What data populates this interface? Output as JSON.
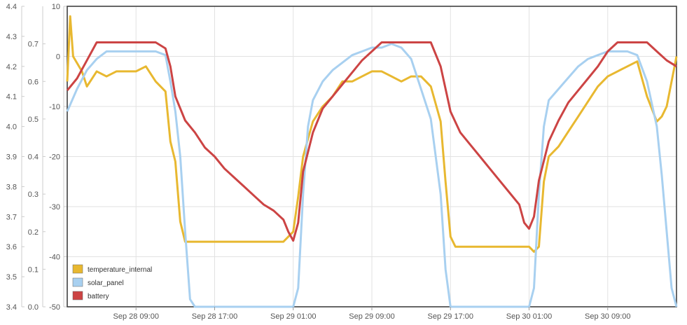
{
  "chart_data": {
    "type": "line",
    "grid": true,
    "legend_position": "bottom-left",
    "x_axis": {
      "range": [
        "Sep 28 02:00",
        "Oct 1 00:00"
      ],
      "ticks": [
        {
          "label": "Sep 28 09:00",
          "hours": 7
        },
        {
          "label": "Sep 28 17:00",
          "hours": 15
        },
        {
          "label": "Sep 29 01:00",
          "hours": 23
        },
        {
          "label": "Sep 29 09:00",
          "hours": 31
        },
        {
          "label": "Sep 29 17:00",
          "hours": 39
        },
        {
          "label": "Sep 30 01:00",
          "hours": 47
        },
        {
          "label": "Sep 30 09:00",
          "hours": 55
        }
      ]
    },
    "y_axes": [
      {
        "id": "battery",
        "range": [
          3.4,
          4.4
        ],
        "ticks": [
          "3.4",
          "3.5",
          "3.6",
          "3.7",
          "3.8",
          "3.9",
          "4.0",
          "4.1",
          "4.2",
          "4.3",
          "4.4"
        ]
      },
      {
        "id": "solar_panel",
        "range": [
          0.0,
          0.8
        ],
        "ticks": [
          "0.0",
          "0.1",
          "0.2",
          "0.3",
          "0.4",
          "0.5",
          "0.6",
          "0.7"
        ]
      },
      {
        "id": "temperature_internal",
        "range": [
          -50,
          10
        ],
        "ticks": [
          "-50",
          "-40",
          "-30",
          "-20",
          "-10",
          "0",
          "10"
        ]
      }
    ],
    "series": [
      {
        "name": "temperature_internal",
        "axis": "temperature_internal",
        "color": "#e8b830",
        "hours": [
          0,
          0.3,
          0.6,
          1.5,
          2,
          3,
          4,
          5,
          6,
          7,
          8,
          9,
          10,
          10.5,
          11,
          11.5,
          12,
          12.5,
          13,
          13.5,
          14,
          16,
          18,
          20,
          22,
          23,
          23.5,
          24,
          25,
          26,
          27,
          28,
          29,
          30,
          31,
          32,
          33,
          34,
          35,
          36,
          37,
          38,
          38.5,
          39,
          39.5,
          40,
          42,
          44,
          46,
          47,
          47.5,
          48,
          48.5,
          49,
          50,
          51,
          52,
          53,
          54,
          55,
          56,
          57,
          58,
          59,
          60,
          60.5,
          61,
          61.5,
          62
        ],
        "values": [
          -5,
          8,
          0,
          -3,
          -6,
          -3,
          -4,
          -3,
          -3,
          -3,
          -2,
          -5,
          -7,
          -17,
          -21,
          -33,
          -37,
          -37,
          -37,
          -37,
          -37,
          -37,
          -37,
          -37,
          -37,
          -35,
          -28,
          -20,
          -13,
          -10,
          -8,
          -5,
          -5,
          -4,
          -3,
          -3,
          -4,
          -5,
          -4,
          -4,
          -6,
          -13,
          -25,
          -36,
          -38,
          -38,
          -38,
          -38,
          -38,
          -38,
          -39,
          -38,
          -25,
          -20,
          -18,
          -15,
          -12,
          -9,
          -6,
          -4,
          -3,
          -2,
          -1,
          -8,
          -13,
          -12,
          -10,
          -5,
          0
        ]
      },
      {
        "name": "solar_panel",
        "axis": "solar_panel",
        "color": "#a8d0f0",
        "hours": [
          0,
          1,
          2,
          3,
          4,
          5,
          6,
          7,
          8,
          9,
          10,
          10.5,
          11,
          11.5,
          12,
          12.5,
          13,
          14,
          16,
          18,
          20,
          22,
          23,
          23.5,
          24,
          24.5,
          25,
          26,
          27,
          28,
          29,
          30,
          31,
          32,
          33,
          34,
          35,
          36,
          37,
          38,
          38.5,
          39,
          39.5,
          40,
          42,
          44,
          46,
          47,
          47.5,
          48,
          48.5,
          49,
          50,
          51,
          52,
          53,
          54,
          55,
          56,
          57,
          58,
          59,
          60,
          60.5,
          61,
          61.5,
          62
        ],
        "values": [
          0.52,
          0.58,
          0.63,
          0.66,
          0.68,
          0.68,
          0.68,
          0.68,
          0.68,
          0.68,
          0.67,
          0.6,
          0.52,
          0.4,
          0.2,
          0.02,
          0.0,
          0.0,
          0.0,
          0.0,
          0.0,
          0.0,
          0.0,
          0.05,
          0.3,
          0.48,
          0.55,
          0.6,
          0.63,
          0.65,
          0.67,
          0.68,
          0.69,
          0.69,
          0.7,
          0.69,
          0.66,
          0.58,
          0.5,
          0.3,
          0.1,
          0.0,
          0.0,
          0.0,
          0.0,
          0.0,
          0.0,
          0.0,
          0.05,
          0.3,
          0.48,
          0.55,
          0.58,
          0.61,
          0.64,
          0.66,
          0.67,
          0.68,
          0.68,
          0.68,
          0.67,
          0.6,
          0.48,
          0.35,
          0.2,
          0.05,
          0.0
        ]
      },
      {
        "name": "battery",
        "axis": "battery",
        "color": "#cc4444",
        "hours": [
          0,
          1,
          2,
          3,
          4,
          5,
          6,
          7,
          8,
          9,
          10,
          10.5,
          11,
          12,
          13,
          14,
          15,
          16,
          17,
          18,
          19,
          20,
          21,
          22,
          22.5,
          23,
          23.5,
          24,
          25,
          26,
          27,
          28,
          29,
          30,
          31,
          32,
          33,
          34,
          35,
          36,
          37,
          38,
          39,
          40,
          41,
          42,
          43,
          44,
          45,
          46,
          46.5,
          47,
          47.5,
          48,
          49,
          50,
          51,
          52,
          53,
          54,
          55,
          56,
          57,
          58,
          59,
          60,
          61,
          62
        ],
        "values": [
          4.12,
          4.16,
          4.22,
          4.28,
          4.28,
          4.28,
          4.28,
          4.28,
          4.28,
          4.28,
          4.26,
          4.2,
          4.1,
          4.02,
          3.98,
          3.93,
          3.9,
          3.86,
          3.83,
          3.8,
          3.77,
          3.74,
          3.72,
          3.69,
          3.65,
          3.62,
          3.68,
          3.85,
          3.98,
          4.06,
          4.1,
          4.14,
          4.18,
          4.22,
          4.25,
          4.28,
          4.28,
          4.28,
          4.28,
          4.28,
          4.28,
          4.2,
          4.05,
          3.98,
          3.94,
          3.9,
          3.86,
          3.82,
          3.78,
          3.74,
          3.68,
          3.66,
          3.7,
          3.82,
          3.95,
          4.02,
          4.08,
          4.12,
          4.16,
          4.2,
          4.25,
          4.28,
          4.28,
          4.28,
          4.28,
          4.25,
          4.22,
          4.2
        ]
      }
    ]
  }
}
